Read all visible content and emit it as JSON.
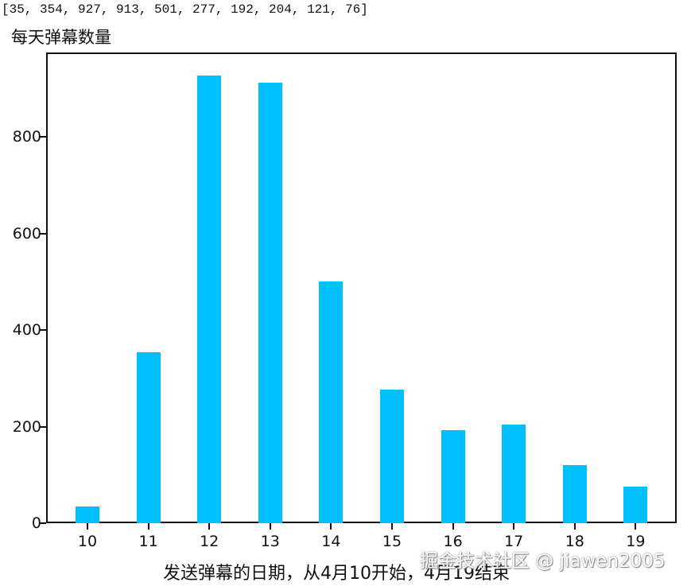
{
  "console_output": "[35, 354, 927, 913, 501, 277, 192, 204, 121, 76]",
  "colors": {
    "bar": "#00BFFF",
    "axis": "#111111",
    "background": "#ffffff"
  },
  "watermark": "掘金技术社区 @ jiawen2005",
  "chart_data": {
    "type": "bar",
    "title": "每天弹幕数量",
    "xlabel": "发送弹幕的日期，从4月10开始，4月19结束",
    "ylabel": "",
    "categories": [
      "10",
      "11",
      "12",
      "13",
      "14",
      "15",
      "16",
      "17",
      "18",
      "19"
    ],
    "values": [
      35,
      354,
      927,
      913,
      501,
      277,
      192,
      204,
      121,
      76
    ],
    "yticks": [
      "0",
      "200",
      "400",
      "600",
      "800"
    ],
    "ylim": [
      0,
      975
    ],
    "grid": false,
    "legend": null
  }
}
